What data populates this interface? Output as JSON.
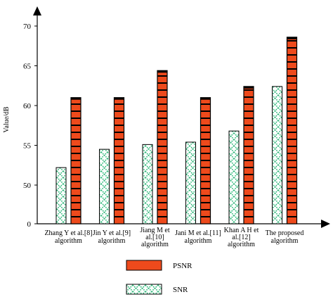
{
  "chart_data": {
    "type": "bar",
    "ylabel": "Value/dB",
    "xlabel": "",
    "title": "",
    "y_ticks": [
      {
        "value": 0,
        "label": "0"
      },
      {
        "value": 50,
        "label": "50"
      },
      {
        "value": 55,
        "label": "55"
      },
      {
        "value": 60,
        "label": "60"
      },
      {
        "value": 65,
        "label": "65"
      },
      {
        "value": 70,
        "label": "70"
      }
    ],
    "categories": [
      [
        "Zhang Y et al.[8]",
        "algorithm"
      ],
      [
        "Jin Y et al.[9]",
        "algorithm"
      ],
      [
        "Jiang M et",
        "al.[10]",
        "algorithm"
      ],
      [
        "Jani M et al.[11]",
        "algorithm"
      ],
      [
        "Khan A H et",
        "al.[12]",
        "algorithm"
      ],
      [
        "The proposed",
        "algorithm"
      ]
    ],
    "series": [
      {
        "name": "SNR",
        "color": "#2fb87a",
        "pattern": "cross-hatch",
        "values": [
          52.2,
          54.5,
          55.1,
          55.4,
          56.8,
          62.4
        ]
      },
      {
        "name": "PSNR",
        "color": "#ee4a1c",
        "pattern": "solid-segmented",
        "values": [
          61.0,
          61.0,
          64.4,
          61.0,
          62.4,
          68.6
        ]
      }
    ],
    "legend": {
      "placement": "bottom",
      "order": [
        "PSNR",
        "SNR"
      ]
    },
    "grid": false
  }
}
